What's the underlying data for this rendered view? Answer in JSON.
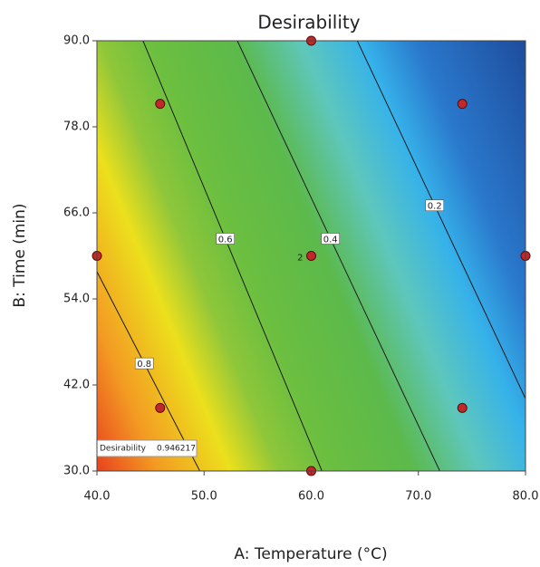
{
  "chart_data": {
    "type": "contour",
    "title": "Desirability",
    "x_label": "A: Temperature (°C)",
    "y_label": "B: Time (min)",
    "xlim": [
      40,
      80
    ],
    "ylim": [
      30,
      90
    ],
    "xticks": [
      {
        "value": 40,
        "label": "40.0"
      },
      {
        "value": 50,
        "label": "50.0"
      },
      {
        "value": 60,
        "label": "60.0"
      },
      {
        "value": 70,
        "label": "70.0"
      },
      {
        "value": 80,
        "label": "80.0"
      }
    ],
    "yticks": [
      {
        "value": 30,
        "label": "30.0"
      },
      {
        "value": 42,
        "label": "42.0"
      },
      {
        "value": 54,
        "label": "54.0"
      },
      {
        "value": 66,
        "label": "66.0"
      },
      {
        "value": 78,
        "label": "78.0"
      },
      {
        "value": 90,
        "label": "90.0"
      }
    ],
    "contours": [
      {
        "level": 0.8,
        "x": [
          40,
          49.6
        ],
        "y": [
          57.8,
          30
        ]
      },
      {
        "level": 0.6,
        "x": [
          44.3,
          61.0
        ],
        "y": [
          90,
          30
        ]
      },
      {
        "level": 0.4,
        "x": [
          53.1,
          72.0
        ],
        "y": [
          90,
          30
        ]
      },
      {
        "level": 0.2,
        "x": [
          64.3,
          80
        ],
        "y": [
          90,
          40.1
        ]
      }
    ],
    "contour_color": "#1a1a1a",
    "points": {
      "color": "#c0282a",
      "x": [
        40,
        45.9,
        60,
        74.1,
        80,
        74.1,
        60,
        45.9,
        60
      ],
      "y": [
        60,
        81.2,
        90,
        81.2,
        60,
        38.8,
        30,
        38.8,
        60
      ]
    },
    "annotations": [
      {
        "x": 60,
        "y": 60,
        "text": "2"
      }
    ],
    "flag": {
      "x": 40,
      "y": 30,
      "label": "Desirability",
      "value": 0.946217
    }
  }
}
